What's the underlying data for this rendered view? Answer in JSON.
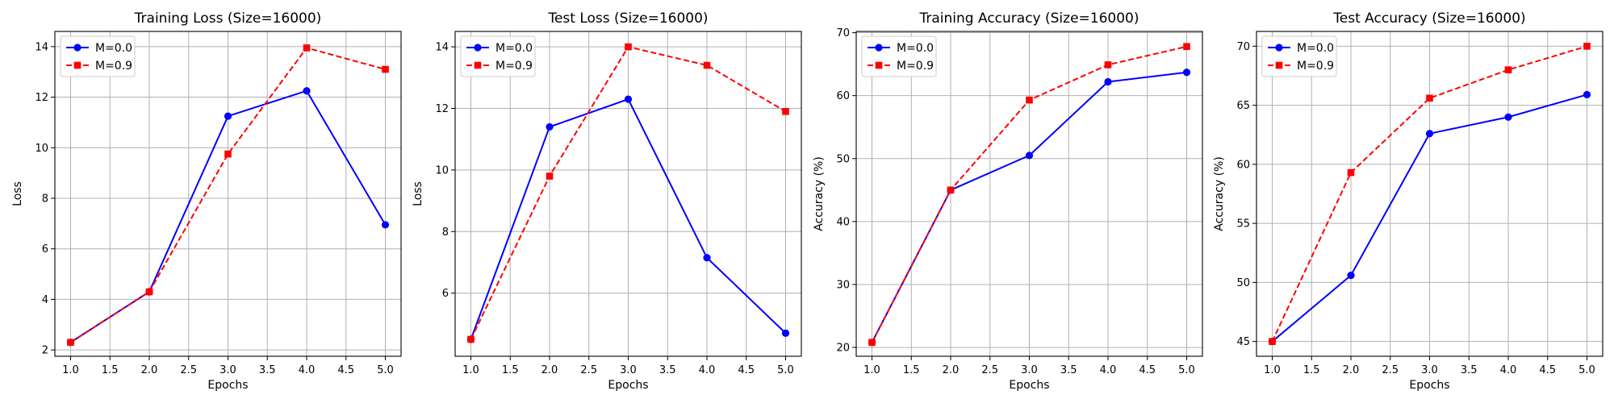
{
  "chart_data": [
    {
      "type": "line",
      "title": "Training Loss (Size=16000)",
      "xlabel": "Epochs",
      "ylabel": "Loss",
      "xlim": [
        0.8,
        5.2
      ],
      "ylim": [
        1.75,
        14.6
      ],
      "xticks": [
        1.0,
        1.5,
        2.0,
        2.5,
        3.0,
        3.5,
        4.0,
        4.5,
        5.0
      ],
      "xtick_labels": [
        "1.0",
        "1.5",
        "2.0",
        "2.5",
        "3.0",
        "3.5",
        "4.0",
        "4.5",
        "5.0"
      ],
      "yticks": [
        2,
        4,
        6,
        8,
        10,
        12,
        14
      ],
      "ytick_labels": [
        "2",
        "4",
        "6",
        "8",
        "10",
        "12",
        "14"
      ],
      "grid": true,
      "legend_position": "top-left",
      "x": [
        1,
        2,
        3,
        4,
        5
      ],
      "series": [
        {
          "name": "M=0.0",
          "values": [
            2.3,
            4.3,
            11.25,
            12.25,
            6.95
          ],
          "color": "#0000ff",
          "line_style": "solid",
          "marker": "circle"
        },
        {
          "name": "M=0.9",
          "values": [
            2.3,
            4.3,
            9.75,
            13.95,
            13.1
          ],
          "color": "#ff0000",
          "line_style": "dashed",
          "marker": "square"
        }
      ]
    },
    {
      "type": "line",
      "title": "Test Loss (Size=16000)",
      "xlabel": "Epochs",
      "ylabel": "Loss",
      "xlim": [
        0.8,
        5.2
      ],
      "ylim": [
        3.95,
        14.5
      ],
      "xticks": [
        1.0,
        1.5,
        2.0,
        2.5,
        3.0,
        3.5,
        4.0,
        4.5,
        5.0
      ],
      "xtick_labels": [
        "1.0",
        "1.5",
        "2.0",
        "2.5",
        "3.0",
        "3.5",
        "4.0",
        "4.5",
        "5.0"
      ],
      "yticks": [
        6,
        8,
        10,
        12,
        14
      ],
      "ytick_labels": [
        "6",
        "8",
        "10",
        "12",
        "14"
      ],
      "grid": true,
      "legend_position": "top-left",
      "x": [
        1,
        2,
        3,
        4,
        5
      ],
      "series": [
        {
          "name": "M=0.0",
          "values": [
            4.5,
            11.4,
            12.3,
            7.15,
            4.7
          ],
          "color": "#0000ff",
          "line_style": "solid",
          "marker": "circle"
        },
        {
          "name": "M=0.9",
          "values": [
            4.5,
            9.8,
            14.0,
            13.4,
            11.9
          ],
          "color": "#ff0000",
          "line_style": "dashed",
          "marker": "square"
        }
      ]
    },
    {
      "type": "line",
      "title": "Training Accuracy (Size=16000)",
      "xlabel": "Epochs",
      "ylabel": "Accuracy (%)",
      "xlim": [
        0.8,
        5.2
      ],
      "ylim": [
        18.6,
        70.2
      ],
      "xticks": [
        1.0,
        1.5,
        2.0,
        2.5,
        3.0,
        3.5,
        4.0,
        4.5,
        5.0
      ],
      "xtick_labels": [
        "1.0",
        "1.5",
        "2.0",
        "2.5",
        "3.0",
        "3.5",
        "4.0",
        "4.5",
        "5.0"
      ],
      "yticks": [
        20,
        30,
        40,
        50,
        60,
        70
      ],
      "ytick_labels": [
        "20",
        "30",
        "40",
        "50",
        "60",
        "70"
      ],
      "grid": true,
      "legend_position": "top-left",
      "x": [
        1,
        2,
        3,
        4,
        5
      ],
      "series": [
        {
          "name": "M=0.0",
          "values": [
            20.8,
            45.0,
            50.5,
            62.2,
            63.7
          ],
          "color": "#0000ff",
          "line_style": "solid",
          "marker": "circle"
        },
        {
          "name": "M=0.9",
          "values": [
            20.8,
            45.0,
            59.3,
            64.9,
            67.8
          ],
          "color": "#ff0000",
          "line_style": "dashed",
          "marker": "square"
        }
      ]
    },
    {
      "type": "line",
      "title": "Test Accuracy (Size=16000)",
      "xlabel": "Epochs",
      "ylabel": "Accuracy (%)",
      "xlim": [
        0.8,
        5.2
      ],
      "ylim": [
        43.75,
        71.25
      ],
      "xticks": [
        1.0,
        1.5,
        2.0,
        2.5,
        3.0,
        3.5,
        4.0,
        4.5,
        5.0
      ],
      "xtick_labels": [
        "1.0",
        "1.5",
        "2.0",
        "2.5",
        "3.0",
        "3.5",
        "4.0",
        "4.5",
        "5.0"
      ],
      "yticks": [
        45,
        50,
        55,
        60,
        65,
        70
      ],
      "ytick_labels": [
        "45",
        "50",
        "55",
        "60",
        "65",
        "70"
      ],
      "grid": true,
      "legend_position": "top-left",
      "x": [
        1,
        2,
        3,
        4,
        5
      ],
      "series": [
        {
          "name": "M=0.0",
          "values": [
            45.0,
            50.6,
            62.6,
            64.0,
            65.9
          ],
          "color": "#0000ff",
          "line_style": "solid",
          "marker": "circle"
        },
        {
          "name": "M=0.9",
          "values": [
            45.0,
            59.3,
            65.6,
            68.0,
            70.0
          ],
          "color": "#ff0000",
          "line_style": "dashed",
          "marker": "square"
        }
      ]
    }
  ]
}
